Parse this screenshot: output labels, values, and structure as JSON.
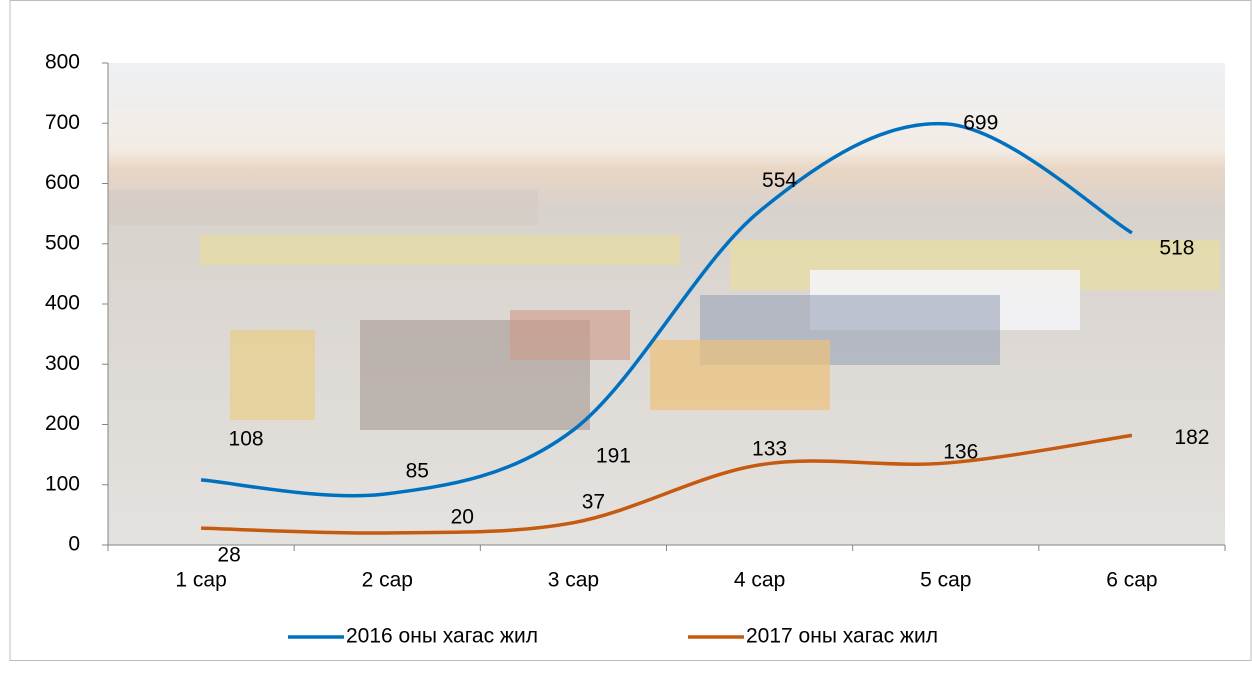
{
  "chart_data": {
    "type": "line",
    "categories": [
      "1 сар",
      "2 сар",
      "3 сар",
      "4 сар",
      "5 сар",
      "6 сар"
    ],
    "series": [
      {
        "name": "2016 оны хагас жил",
        "color": "#0070c0",
        "values": [
          108,
          85,
          191,
          554,
          699,
          518
        ]
      },
      {
        "name": "2017 оны хагас жил",
        "color": "#c55a11",
        "values": [
          28,
          20,
          37,
          133,
          136,
          182
        ]
      }
    ],
    "ylim": [
      0,
      800
    ],
    "yticks": [
      0,
      100,
      200,
      300,
      400,
      500,
      600,
      700,
      800
    ],
    "smooth": true,
    "legend": "bottom"
  }
}
